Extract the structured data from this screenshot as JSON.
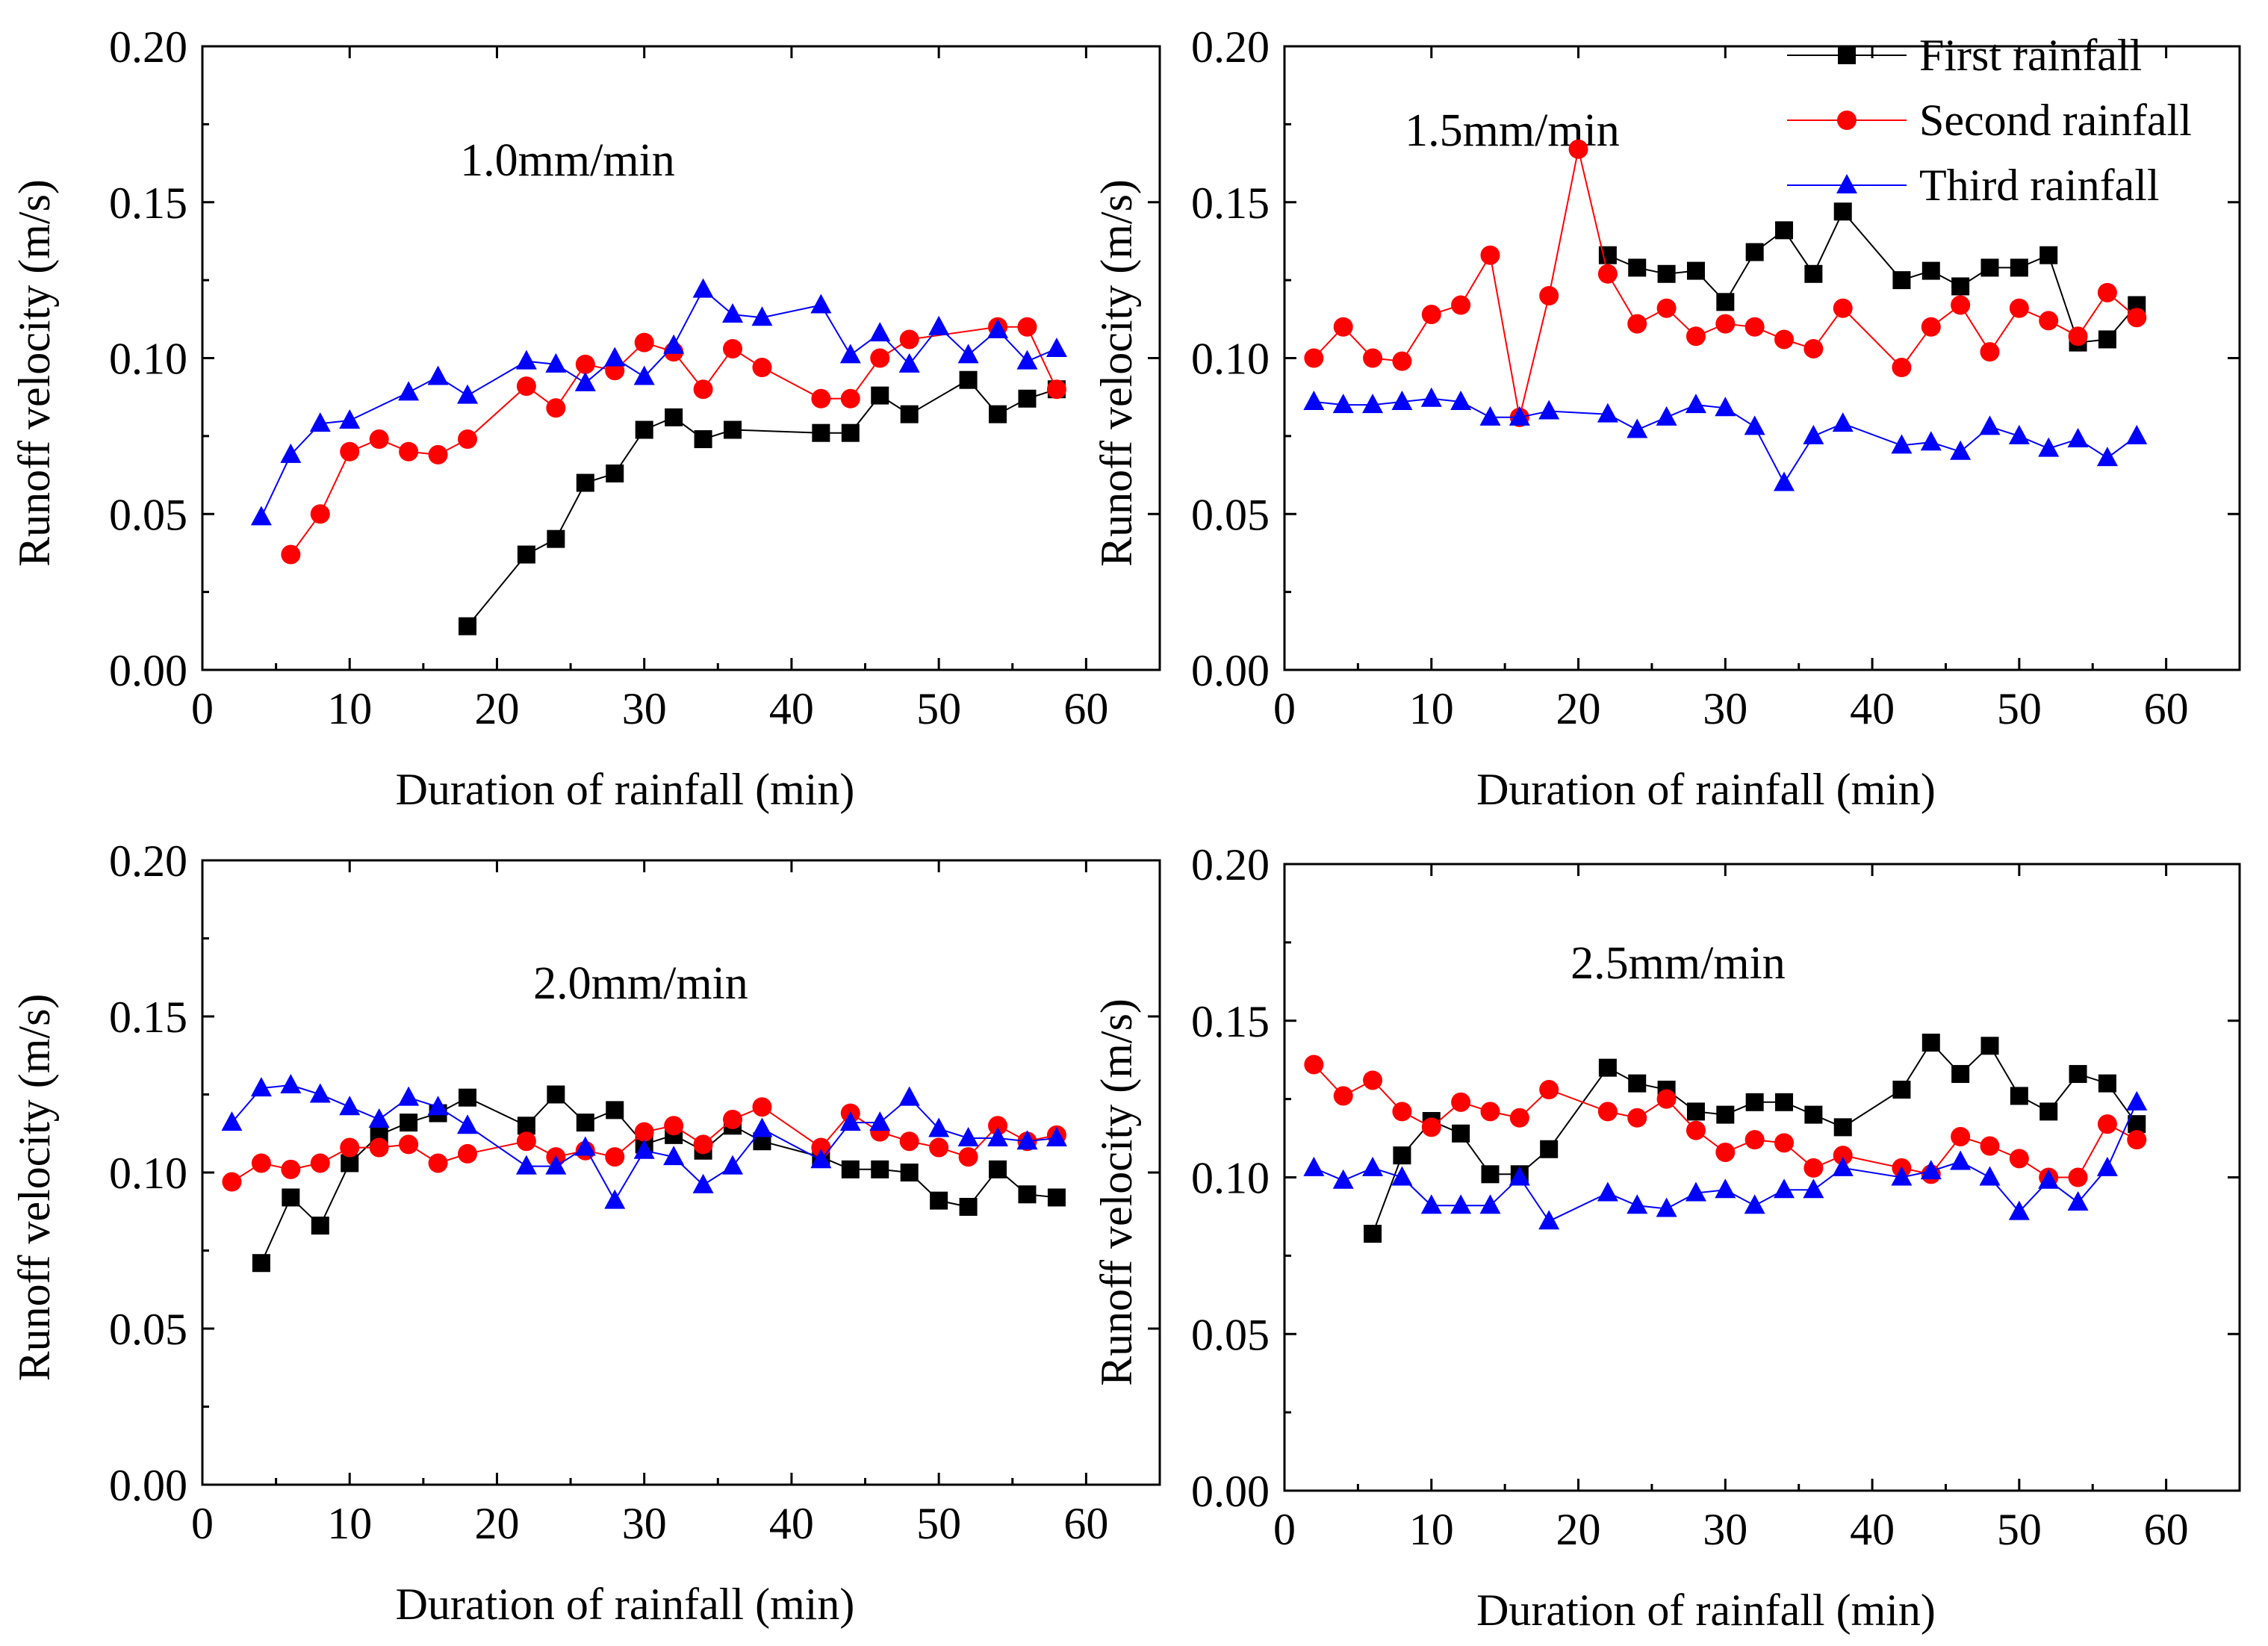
{
  "figure": {
    "legend": [
      {
        "name": "First rainfall",
        "color": "#000000",
        "marker": "square"
      },
      {
        "name": "Second rainfall",
        "color": "#ff0000",
        "marker": "circle"
      },
      {
        "name": "Third rainfall",
        "color": "#0000ff",
        "marker": "triangle"
      }
    ]
  },
  "chart_data": [
    {
      "type": "line",
      "title": "1.0mm/min",
      "xlabel": "Duration of rainfall  (min)",
      "ylabel": "Runoff velocity  (m/s)",
      "xlim": [
        0,
        65
      ],
      "ylim": [
        0,
        0.2
      ],
      "xticks": [
        "0",
        "10",
        "20",
        "30",
        "40",
        "50",
        "60"
      ],
      "yticks": [
        "0.00",
        "0.05",
        "0.10",
        "0.15",
        "0.20"
      ],
      "series": [
        {
          "name": "First rainfall",
          "x": [
            18,
            22,
            24,
            26,
            28,
            30,
            32,
            34,
            36,
            42,
            44,
            46,
            48,
            52,
            54,
            56,
            58
          ],
          "values": [
            0.014,
            0.037,
            0.042,
            0.06,
            0.063,
            0.077,
            0.081,
            0.074,
            0.077,
            0.076,
            0.076,
            0.088,
            0.082,
            0.093,
            0.082,
            0.087,
            0.09
          ]
        },
        {
          "name": "Second rainfall",
          "x": [
            6,
            8,
            10,
            12,
            14,
            16,
            18,
            22,
            24,
            26,
            28,
            30,
            32,
            34,
            36,
            38,
            42,
            44,
            46,
            48,
            54,
            56,
            58
          ],
          "values": [
            0.037,
            0.05,
            0.07,
            0.074,
            0.07,
            0.069,
            0.074,
            0.091,
            0.084,
            0.098,
            0.096,
            0.105,
            0.102,
            0.09,
            0.103,
            0.097,
            0.087,
            0.087,
            0.1,
            0.106,
            0.11,
            0.11,
            0.09
          ]
        },
        {
          "name": "Third rainfall",
          "x": [
            4,
            6,
            8,
            10,
            14,
            16,
            18,
            22,
            24,
            26,
            28,
            30,
            32,
            34,
            36,
            38,
            42,
            44,
            46,
            48,
            50,
            52,
            54,
            56,
            58
          ],
          "values": [
            0.049,
            0.069,
            0.079,
            0.08,
            0.089,
            0.094,
            0.088,
            0.099,
            0.098,
            0.092,
            0.1,
            0.094,
            0.104,
            0.122,
            0.114,
            0.113,
            0.117,
            0.101,
            0.108,
            0.098,
            0.11,
            0.101,
            0.109,
            0.099,
            0.103
          ]
        }
      ]
    },
    {
      "type": "line",
      "title": "1.5mm/min",
      "xlabel": "Duration of rainfall  (min)",
      "ylabel": "Runoff velocity  (m/s)",
      "xlim": [
        0,
        65
      ],
      "ylim": [
        0,
        0.2
      ],
      "xticks": [
        "0",
        "10",
        "20",
        "30",
        "40",
        "50",
        "60"
      ],
      "yticks": [
        "0.00",
        "0.05",
        "0.10",
        "0.15",
        "0.20"
      ],
      "series": [
        {
          "name": "First rainfall",
          "x": [
            22,
            24,
            26,
            28,
            30,
            32,
            34,
            36,
            38,
            42,
            44,
            46,
            48,
            50,
            52,
            54,
            56,
            58
          ],
          "values": [
            0.133,
            0.129,
            0.127,
            0.128,
            0.118,
            0.134,
            0.141,
            0.127,
            0.147,
            0.125,
            0.128,
            0.123,
            0.129,
            0.129,
            0.133,
            0.105,
            0.106,
            0.117
          ]
        },
        {
          "name": "Second rainfall",
          "x": [
            2,
            4,
            6,
            8,
            10,
            12,
            14,
            16,
            18,
            20,
            22,
            24,
            26,
            28,
            30,
            32,
            34,
            36,
            38,
            42,
            44,
            46,
            48,
            50,
            52,
            54,
            56,
            58
          ],
          "values": [
            0.1,
            0.11,
            0.1,
            0.099,
            0.114,
            0.117,
            0.133,
            0.081,
            0.12,
            0.167,
            0.127,
            0.111,
            0.116,
            0.107,
            0.111,
            0.11,
            0.106,
            0.103,
            0.116,
            0.097,
            0.11,
            0.117,
            0.102,
            0.116,
            0.112,
            0.107,
            0.121,
            0.113
          ]
        },
        {
          "name": "Third rainfall",
          "x": [
            2,
            4,
            6,
            8,
            10,
            12,
            14,
            16,
            18,
            22,
            24,
            26,
            28,
            30,
            32,
            34,
            36,
            38,
            42,
            44,
            46,
            48,
            50,
            52,
            54,
            56,
            58
          ],
          "values": [
            0.086,
            0.085,
            0.085,
            0.086,
            0.087,
            0.086,
            0.081,
            0.081,
            0.083,
            0.082,
            0.077,
            0.081,
            0.085,
            0.084,
            0.078,
            0.06,
            0.075,
            0.079,
            0.072,
            0.073,
            0.07,
            0.078,
            0.075,
            0.071,
            0.074,
            0.068,
            0.075
          ]
        }
      ]
    },
    {
      "type": "line",
      "title": "2.0mm/min",
      "xlabel": "Duration of rainfall  (min)",
      "ylabel": "Runoff velocity  (m/s)",
      "xlim": [
        0,
        65
      ],
      "ylim": [
        0,
        0.2
      ],
      "xticks": [
        "0",
        "10",
        "20",
        "30",
        "40",
        "50",
        "60"
      ],
      "yticks": [
        "0.00",
        "0.05",
        "0.10",
        "0.15",
        "0.20"
      ],
      "series": [
        {
          "name": "First rainfall",
          "x": [
            4,
            6,
            8,
            10,
            12,
            14,
            16,
            18,
            22,
            24,
            26,
            28,
            30,
            32,
            34,
            36,
            38,
            42,
            44,
            46,
            48,
            50,
            52,
            54,
            56,
            58
          ],
          "values": [
            0.071,
            0.092,
            0.083,
            0.103,
            0.112,
            0.116,
            0.119,
            0.124,
            0.115,
            0.125,
            0.116,
            0.12,
            0.109,
            0.112,
            0.107,
            0.115,
            0.11,
            0.105,
            0.101,
            0.101,
            0.1,
            0.091,
            0.089,
            0.101,
            0.093,
            0.092
          ]
        },
        {
          "name": "Second rainfall",
          "x": [
            2,
            4,
            6,
            8,
            10,
            12,
            14,
            16,
            18,
            22,
            24,
            26,
            28,
            30,
            32,
            34,
            36,
            38,
            42,
            44,
            46,
            48,
            50,
            52,
            54,
            56,
            58
          ],
          "values": [
            0.097,
            0.103,
            0.101,
            0.103,
            0.108,
            0.108,
            0.109,
            0.103,
            0.106,
            0.11,
            0.105,
            0.107,
            0.105,
            0.113,
            0.115,
            0.109,
            0.117,
            0.121,
            0.108,
            0.119,
            0.113,
            0.11,
            0.108,
            0.105,
            0.115,
            0.11,
            0.112
          ]
        },
        {
          "name": "Third rainfall",
          "x": [
            2,
            4,
            6,
            8,
            10,
            12,
            14,
            16,
            18,
            22,
            24,
            26,
            28,
            30,
            32,
            34,
            36,
            38,
            42,
            44,
            46,
            48,
            50,
            52,
            54,
            56,
            58
          ],
          "values": [
            0.116,
            0.127,
            0.128,
            0.125,
            0.121,
            0.117,
            0.124,
            0.121,
            0.115,
            0.102,
            0.102,
            0.108,
            0.091,
            0.107,
            0.105,
            0.096,
            0.102,
            0.114,
            0.104,
            0.116,
            0.116,
            0.124,
            0.114,
            0.111,
            0.111,
            0.11,
            0.111
          ]
        }
      ]
    },
    {
      "type": "line",
      "title": "2.5mm/min",
      "xlabel": "Duration of rainfall  (min)",
      "ylabel": "Runoff velocity  (m/s)",
      "xlim": [
        0,
        65
      ],
      "ylim": [
        0,
        0.2
      ],
      "xticks": [
        "0",
        "10",
        "20",
        "30",
        "40",
        "50",
        "60"
      ],
      "yticks": [
        "0.00",
        "0.05",
        "0.10",
        "0.15",
        "0.20"
      ],
      "series": [
        {
          "name": "First rainfall",
          "x": [
            6,
            8,
            10,
            12,
            14,
            16,
            18,
            22,
            24,
            26,
            28,
            30,
            32,
            34,
            36,
            38,
            42,
            44,
            46,
            48,
            50,
            52,
            54,
            56,
            58
          ],
          "values": [
            0.082,
            0.107,
            0.118,
            0.114,
            0.101,
            0.101,
            0.109,
            0.135,
            0.13,
            0.128,
            0.121,
            0.12,
            0.124,
            0.124,
            0.12,
            0.116,
            0.128,
            0.143,
            0.133,
            0.142,
            0.126,
            0.121,
            0.133,
            0.13,
            0.117
          ]
        },
        {
          "name": "Second rainfall",
          "x": [
            2,
            4,
            6,
            8,
            10,
            12,
            14,
            16,
            18,
            22,
            24,
            26,
            28,
            30,
            32,
            34,
            36,
            38,
            42,
            44,
            46,
            48,
            50,
            52,
            54,
            56,
            58
          ],
          "values": [
            0.136,
            0.126,
            0.131,
            0.121,
            0.116,
            0.124,
            0.121,
            0.119,
            0.128,
            0.121,
            0.119,
            0.125,
            0.115,
            0.108,
            0.112,
            0.111,
            0.103,
            0.107,
            0.103,
            0.101,
            0.113,
            0.11,
            0.106,
            0.1,
            0.1,
            0.117,
            0.112
          ]
        },
        {
          "name": "Third rainfall",
          "x": [
            2,
            4,
            6,
            8,
            10,
            12,
            14,
            16,
            18,
            22,
            24,
            26,
            28,
            30,
            32,
            34,
            36,
            38,
            42,
            44,
            46,
            48,
            50,
            52,
            54,
            56,
            58
          ],
          "values": [
            0.103,
            0.099,
            0.103,
            0.1,
            0.091,
            0.091,
            0.091,
            0.1,
            0.086,
            0.095,
            0.091,
            0.09,
            0.095,
            0.096,
            0.091,
            0.096,
            0.096,
            0.103,
            0.1,
            0.102,
            0.105,
            0.1,
            0.089,
            0.099,
            0.092,
            0.103,
            0.124
          ]
        }
      ]
    }
  ]
}
